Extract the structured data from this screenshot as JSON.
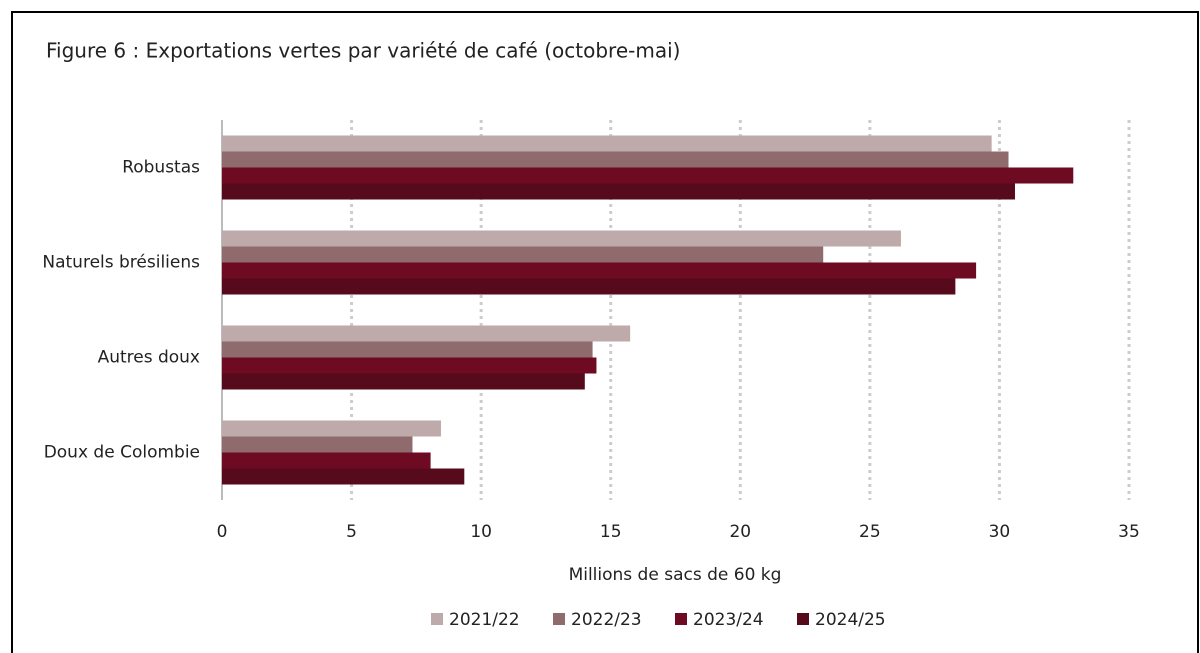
{
  "chart_data": {
    "type": "hbar",
    "title": "Figure 6 : Exportations vertes par variété de café (octobre-mai)",
    "x_label": "Millions de sacs de 60 kg",
    "categories": [
      "Robustas",
      "Naturels brésiliens",
      "Autres doux",
      "Doux de Colombie"
    ],
    "series": [
      {
        "name": "2021/22",
        "color": "#bfaaab",
        "values": [
          29.7,
          26.2,
          15.75,
          8.45
        ]
      },
      {
        "name": "2022/23",
        "color": "#8f6b6e",
        "values": [
          30.35,
          23.2,
          14.3,
          7.35
        ]
      },
      {
        "name": "2023/24",
        "color": "#6e0a22",
        "values": [
          32.85,
          29.1,
          14.45,
          8.05
        ]
      },
      {
        "name": "2024/25",
        "color": "#560a1c",
        "values": [
          30.6,
          28.3,
          14.0,
          9.35
        ]
      }
    ],
    "xlim": [
      0,
      35
    ],
    "xticks": [
      0,
      5,
      10,
      15,
      20,
      25,
      30,
      35
    ],
    "grid": true,
    "legend": "bottom"
  }
}
